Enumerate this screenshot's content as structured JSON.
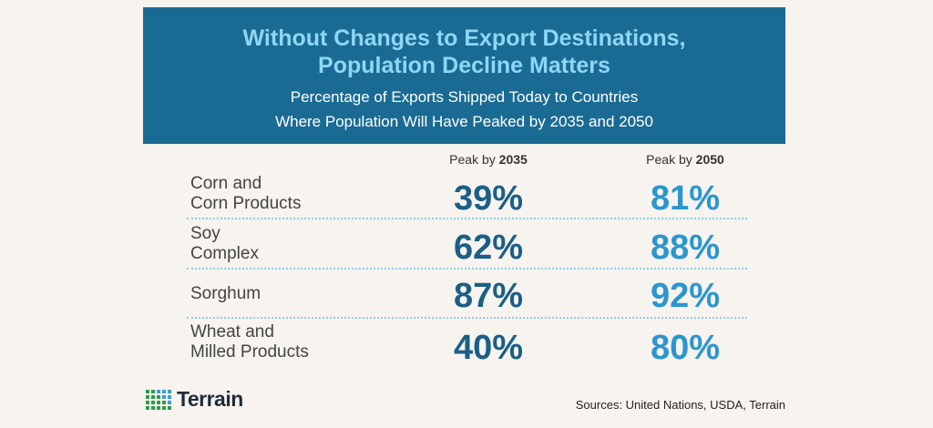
{
  "colors": {
    "header_bg": "#1a6b94",
    "title": "#8fd6f5",
    "val_2035": "#1a5f86",
    "val_2050": "#2b96cf"
  },
  "chart_data": {
    "type": "table",
    "title": "Without Changes to Export Destinations, Population Decline Matters",
    "subtitle": "Percentage of Exports Shipped Today to Countries Where Population Will Have Peaked by 2035 and 2050",
    "title_lines": [
      "Without Changes to Export Destinations,",
      "Population Decline Matters"
    ],
    "subtitle_lines": [
      "Percentage of Exports Shipped Today to Countries",
      "Where Population Will Have Peaked by 2035 and 2050"
    ],
    "columns": [
      {
        "prefix": "Peak by",
        "year": "2035"
      },
      {
        "prefix": "Peak by",
        "year": "2050"
      }
    ],
    "rows": [
      {
        "label_lines": [
          "Corn and",
          "Corn Products"
        ],
        "values": [
          "39%",
          "81%"
        ]
      },
      {
        "label_lines": [
          "Soy",
          "Complex"
        ],
        "values": [
          "62%",
          "88%"
        ]
      },
      {
        "label_lines": [
          "Sorghum"
        ],
        "values": [
          "87%",
          "92%"
        ]
      },
      {
        "label_lines": [
          "Wheat and",
          "Milled Products"
        ],
        "values": [
          "40%",
          "80%"
        ]
      }
    ]
  },
  "footer": {
    "logo_text": "Terrain",
    "sources": "Sources: United Nations, USDA, Terrain"
  }
}
